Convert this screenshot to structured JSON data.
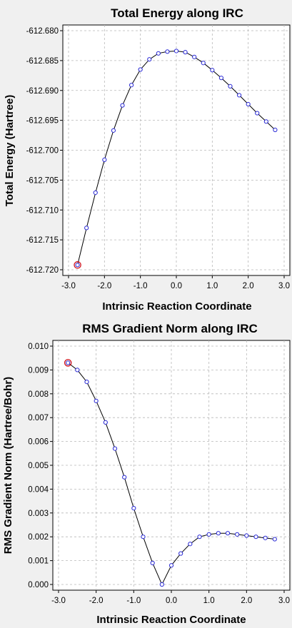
{
  "chart_data": [
    {
      "type": "line",
      "title": "Total Energy along IRC",
      "xlabel": "Intrinsic Reaction Coordinate",
      "ylabel": "Total Energy (Hartree)",
      "xlim": [
        -3.0,
        3.0
      ],
      "ylim": [
        -612.72,
        -612.68
      ],
      "xticks": [
        "-3.0",
        "-2.0",
        "-1.0",
        "0.0",
        "1.0",
        "2.0",
        "3.0"
      ],
      "yticks": [
        "-612.680",
        "-612.685",
        "-612.690",
        "-612.695",
        "-612.700",
        "-612.705",
        "-612.710",
        "-612.715",
        "-612.720"
      ],
      "grid": true,
      "highlight_index": 0,
      "colors": {
        "points": "#2a2ad6",
        "highlight": "#d0101a",
        "line": "#000000"
      },
      "x": [
        -2.75,
        -2.5,
        -2.25,
        -2.0,
        -1.75,
        -1.5,
        -1.25,
        -1.0,
        -0.75,
        -0.5,
        -0.25,
        0.0,
        0.25,
        0.5,
        0.75,
        1.0,
        1.25,
        1.5,
        1.75,
        2.0,
        2.25,
        2.5,
        2.75
      ],
      "y": [
        -612.7192,
        -612.713,
        -612.7071,
        -612.7016,
        -612.6967,
        -612.6925,
        -612.6891,
        -612.6865,
        -612.6848,
        -612.6838,
        -612.6835,
        -612.6834,
        -612.6836,
        -612.6844,
        -612.6854,
        -612.6866,
        -612.6879,
        -612.6893,
        -612.6908,
        -612.6923,
        -612.6938,
        -612.6952,
        -612.6966
      ]
    },
    {
      "type": "line",
      "title": "RMS Gradient Norm along IRC",
      "xlabel": "Intrinsic Reaction Coordinate",
      "ylabel": "RMS Gradient Norm (Hartree/Bohr)",
      "xlim": [
        -3.0,
        3.0
      ],
      "ylim": [
        0.0,
        0.01
      ],
      "xticks": [
        "-3.0",
        "-2.0",
        "-1.0",
        "0.0",
        "1.0",
        "2.0",
        "3.0"
      ],
      "yticks": [
        "0.010",
        "0.009",
        "0.008",
        "0.007",
        "0.006",
        "0.005",
        "0.004",
        "0.003",
        "0.002",
        "0.001",
        "0.000"
      ],
      "grid": true,
      "highlight_index": 0,
      "colors": {
        "points": "#2a2ad6",
        "highlight": "#d0101a",
        "line": "#000000"
      },
      "x": [
        -2.75,
        -2.5,
        -2.25,
        -2.0,
        -1.75,
        -1.5,
        -1.25,
        -1.0,
        -0.75,
        -0.5,
        -0.25,
        0.0,
        0.25,
        0.5,
        0.75,
        1.0,
        1.25,
        1.5,
        1.75,
        2.0,
        2.25,
        2.5,
        2.75
      ],
      "y": [
        0.0093,
        0.009,
        0.0085,
        0.0077,
        0.0068,
        0.0057,
        0.0045,
        0.0032,
        0.002,
        0.0009,
        0.0,
        0.0008,
        0.0013,
        0.0017,
        0.002,
        0.0021,
        0.00215,
        0.00215,
        0.0021,
        0.00205,
        0.002,
        0.00195,
        0.0019
      ]
    }
  ]
}
